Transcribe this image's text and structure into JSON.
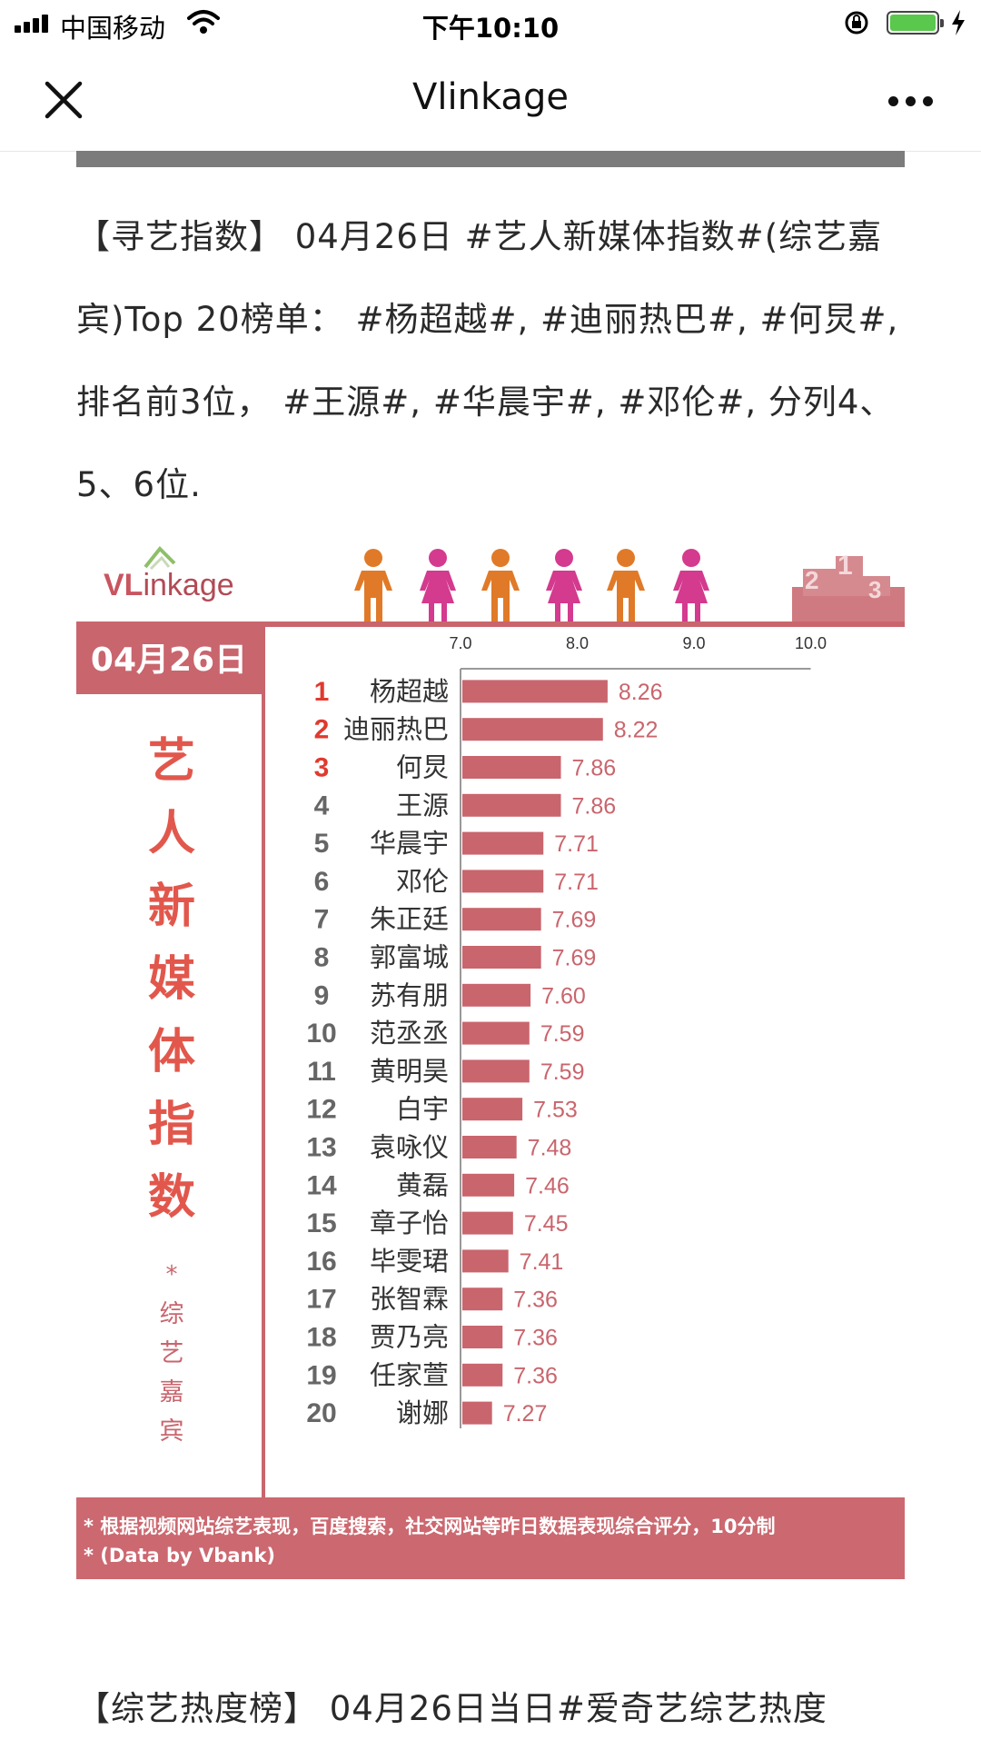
{
  "status_bar": {
    "carrier": "中国移动",
    "time": "下午10:10"
  },
  "nav": {
    "title": "Vlinkage"
  },
  "article": {
    "para1": "【寻艺指数】 04月26日 #艺人新媒体指数#(综艺嘉宾)Top 20榜单： #杨超越#, #迪丽热巴#, #何炅#, 排名前3位， #王源#, #华晨宇#, #邓伦#, 分列4、5、6位.",
    "para2": "【综艺热度榜】 04月26日当日#爱奇艺综艺热度"
  },
  "infographic": {
    "logo_v": "VL",
    "logo_rest": "inkage",
    "date": "04月26日",
    "vertical_title": [
      "艺",
      "人",
      "新",
      "媒",
      "体",
      "指",
      "数"
    ],
    "vertical_star": "*",
    "vertical_sub": [
      "综",
      "艺",
      "嘉",
      "宾"
    ],
    "footer_line1": "* 根据视频网站综艺表现，百度搜索，社交网站等昨日数据表现综合评分，10分制",
    "footer_line2": "* (Data by Vbank)"
  },
  "colors": {
    "accent": "#c9656d",
    "bar": "#c9656d",
    "title_red": "#e2574c",
    "rank_red": "#e03a2e"
  },
  "chart_data": {
    "type": "bar",
    "orientation": "horizontal",
    "xlim": [
      7.0,
      10.0
    ],
    "x_ticks": [
      "7.0",
      "8.0",
      "9.0",
      "10.0"
    ],
    "ranks": [
      "1",
      "2",
      "3",
      "4",
      "5",
      "6",
      "7",
      "8",
      "9",
      "10",
      "11",
      "12",
      "13",
      "14",
      "15",
      "16",
      "17",
      "18",
      "19",
      "20"
    ],
    "categories": [
      "杨超越",
      "迪丽热巴",
      "何炅",
      "王源",
      "华晨宇",
      "邓伦",
      "朱正廷",
      "郭富城",
      "苏有朋",
      "范丞丞",
      "黄明昊",
      "白宇",
      "袁咏仪",
      "黄磊",
      "章子怡",
      "毕雯珺",
      "张智霖",
      "贾乃亮",
      "任家萱",
      "谢娜"
    ],
    "values": [
      8.26,
      8.22,
      7.86,
      7.86,
      7.71,
      7.71,
      7.69,
      7.69,
      7.6,
      7.59,
      7.59,
      7.53,
      7.48,
      7.46,
      7.45,
      7.41,
      7.36,
      7.36,
      7.36,
      7.27
    ],
    "value_labels": [
      "8.26",
      "8.22",
      "7.86",
      "7.86",
      "7.71",
      "7.71",
      "7.69",
      "7.69",
      "7.60",
      "7.59",
      "7.59",
      "7.53",
      "7.48",
      "7.46",
      "7.45",
      "7.41",
      "7.36",
      "7.36",
      "7.36",
      "7.27"
    ]
  }
}
